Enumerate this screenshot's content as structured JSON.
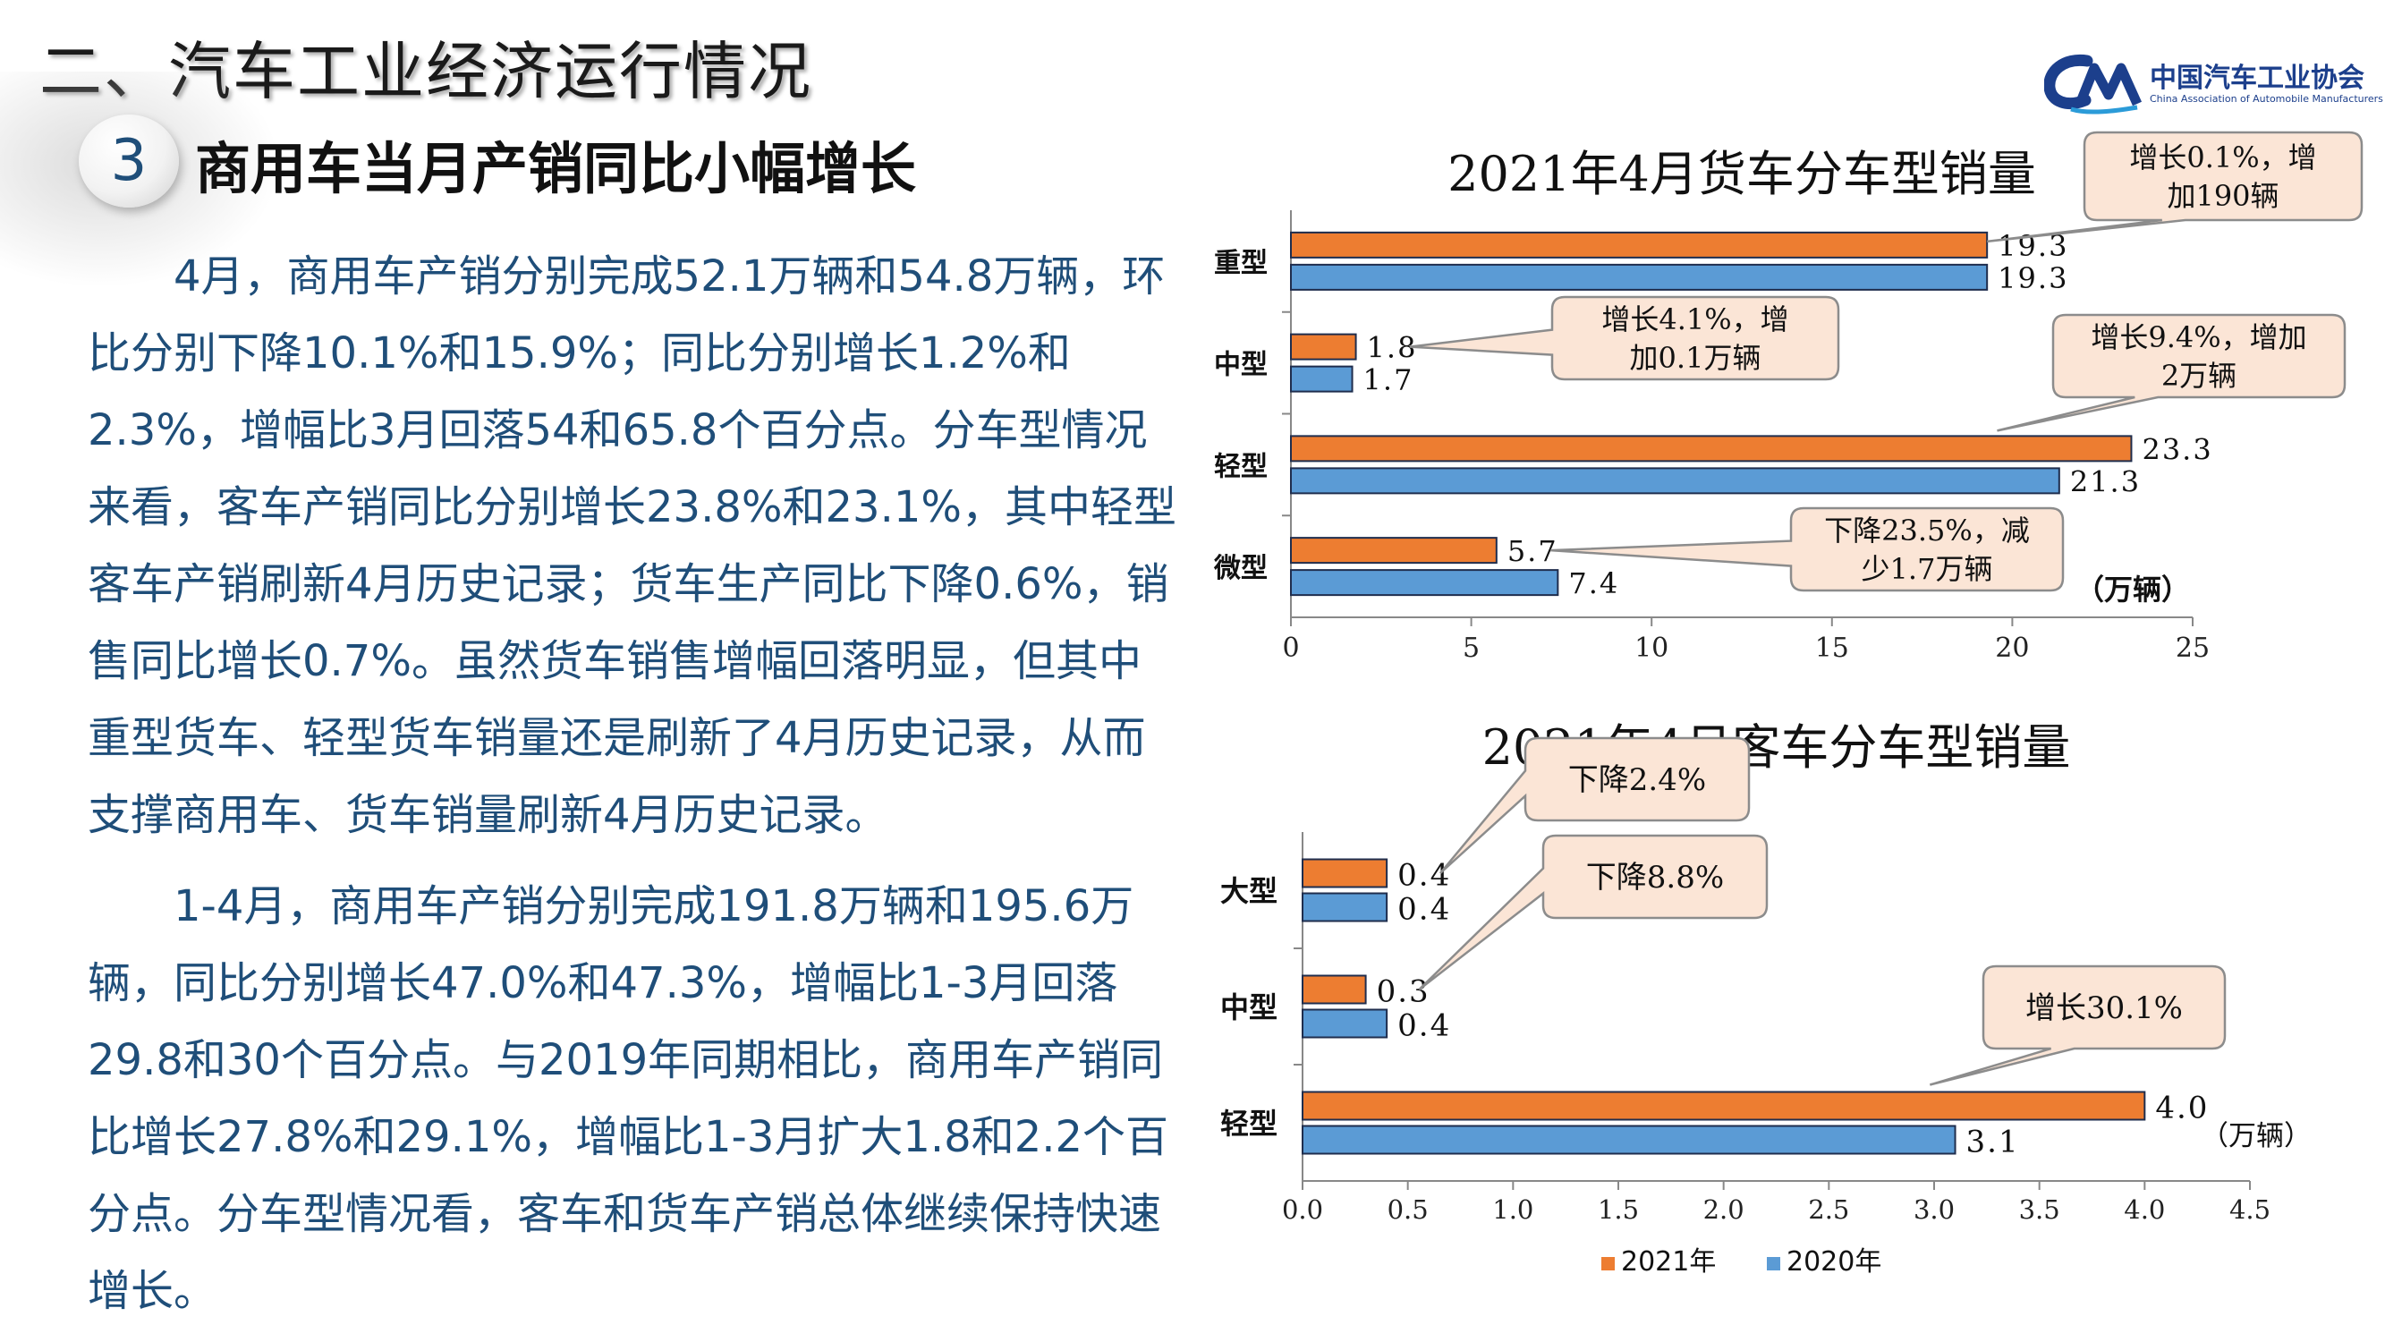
{
  "header": {
    "section_title": "二、汽车工业经济运行情况",
    "section_number": "3",
    "subtitle": "商用车当月产销同比小幅增长"
  },
  "logo": {
    "cn": "中国汽车工业协会",
    "en": "China Association of Automobile Manufacturers"
  },
  "body": {
    "paragraph_1": "4月，商用车产销分别完成52.1万辆和54.8万辆，环比分别下降10.1%和15.9%；同比分别增长1.2%和2.3%，增幅比3月回落54和65.8个百分点。分车型情况来看，客车产销同比分别增长23.8%和23.1%，其中轻型客车产销刷新4月历史记录；货车生产同比下降0.6%，销售同比增长0.7%。虽然货车销售增幅回落明显，但其中重型货车、轻型货车销量还是刷新了4月历史记录，从而支撑商用车、货车销量刷新4月历史记录。",
    "paragraph_2": "1-4月，商用车产销分别完成191.8万辆和195.6万辆，同比分别增长47.0%和47.3%，增幅比1-3月回落29.8和30个百分点。与2019年同期相比，商用车产销同比增长27.8%和29.1%，增幅比1-3月扩大1.8和2.2个百分点。分车型情况看，客车和货车产销总体继续保持快速增长。"
  },
  "colors": {
    "series_2021": "#ed7d31",
    "series_2020": "#5b9bd5",
    "callout_fill": "#fbe5d6",
    "text_blue": "#1f4e79"
  },
  "chart_data": [
    {
      "type": "bar",
      "orientation": "horizontal",
      "title": "2021年4月货车分车型销量",
      "unit_label": "（万辆）",
      "categories": [
        "重型",
        "中型",
        "轻型",
        "微型"
      ],
      "series": [
        {
          "name": "2021年",
          "values": [
            19.3,
            1.8,
            23.3,
            5.7
          ],
          "labels": [
            "19.3",
            "1.8",
            "23.3",
            "5.7"
          ]
        },
        {
          "name": "2020年",
          "values": [
            19.3,
            1.7,
            21.3,
            7.4
          ],
          "labels": [
            "19.3",
            "1.7",
            "21.3",
            "7.4"
          ]
        }
      ],
      "xlim": [
        0,
        25
      ],
      "xticks": [
        "0",
        "5",
        "10",
        "15",
        "20",
        "25"
      ],
      "grid": false,
      "annotations": [
        {
          "category": "重型",
          "line1": "增长0.1%，增",
          "line2": "加190辆"
        },
        {
          "category": "中型",
          "line1": "增长4.1%，增",
          "line2": "加0.1万辆"
        },
        {
          "category": "轻型",
          "line1": "增长9.4%，增加",
          "line2": "2万辆"
        },
        {
          "category": "微型",
          "line1": "下降23.5%，减",
          "line2": "少1.7万辆"
        }
      ]
    },
    {
      "type": "bar",
      "orientation": "horizontal",
      "title": "2021年4月客车分车型销量",
      "unit_label": "（万辆）",
      "categories": [
        "大型",
        "中型",
        "轻型"
      ],
      "series": [
        {
          "name": "2021年",
          "values": [
            0.4,
            0.3,
            4.0
          ],
          "labels": [
            "0.4",
            "0.3",
            "4.0"
          ]
        },
        {
          "name": "2020年",
          "values": [
            0.4,
            0.4,
            3.1
          ],
          "labels": [
            "0.4",
            "0.4",
            "3.1"
          ]
        }
      ],
      "xlim": [
        0,
        4.5
      ],
      "xticks": [
        "0.0",
        "0.5",
        "1.0",
        "1.5",
        "2.0",
        "2.5",
        "3.0",
        "3.5",
        "4.0",
        "4.5"
      ],
      "grid": false,
      "legend": {
        "position": "bottom",
        "entries": [
          "2021年",
          "2020年"
        ]
      },
      "annotations": [
        {
          "category": "大型",
          "line1": "下降2.4%",
          "line2": ""
        },
        {
          "category": "中型",
          "line1": "下降8.8%",
          "line2": ""
        },
        {
          "category": "轻型",
          "line1": "增长30.1%",
          "line2": ""
        }
      ]
    }
  ]
}
